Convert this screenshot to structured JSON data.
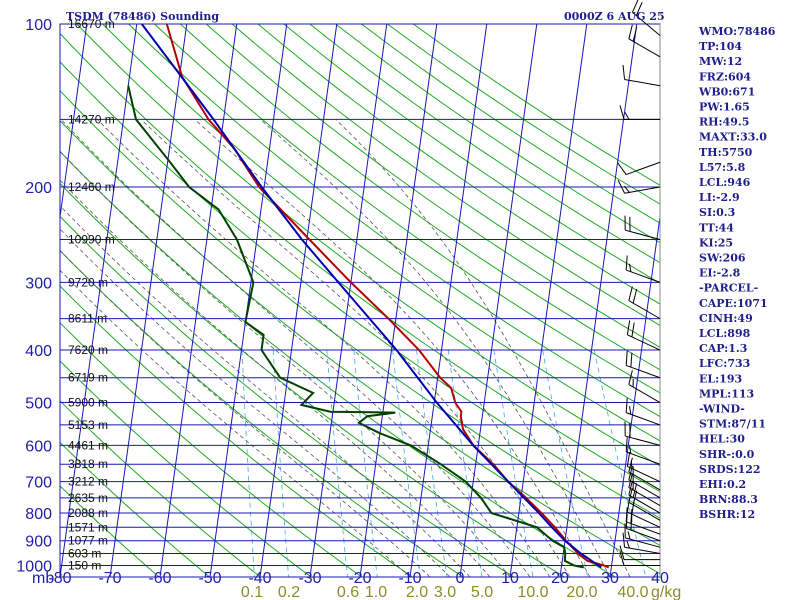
{
  "header": {
    "title": "TSDM (78486) Sounding",
    "datetime": "0000Z  6 AUG 25"
  },
  "chart_data": {
    "type": "line",
    "title": "TSDM (78486) Sounding",
    "y_unit": "mb",
    "temperature_ticks": [
      -80,
      -70,
      -60,
      -50,
      -40,
      -30,
      -20,
      -10,
      0,
      10,
      20,
      30,
      40
    ],
    "temperature_tick_labels": [
      "-80",
      "-70",
      "-60",
      "-50",
      "-40",
      "-30",
      "-20",
      "-10",
      "0",
      "10",
      "20",
      "30",
      "40"
    ],
    "mixing_ratio_labels": [
      "0.1",
      "0.2",
      "0.6",
      "1.0",
      "2.0",
      "3.0",
      "5.0",
      "10.0",
      "20.0",
      "40.0"
    ],
    "mixing_ratio_unit": "g/kg",
    "pressure_ticks": [
      100,
      200,
      300,
      400,
      500,
      600,
      700,
      800,
      900,
      1000
    ],
    "pressure_range": [
      100,
      1050
    ],
    "temperature_range": [
      -80,
      40
    ],
    "altitude_labels": [
      {
        "p": 100,
        "text": "16670 m"
      },
      {
        "p": 150,
        "text": "14270 m"
      },
      {
        "p": 200,
        "text": "12460 m"
      },
      {
        "p": 250,
        "text": "10990 m"
      },
      {
        "p": 300,
        "text": "9720 m"
      },
      {
        "p": 350,
        "text": "8611 m"
      },
      {
        "p": 400,
        "text": "7620 m"
      },
      {
        "p": 450,
        "text": "6719 m"
      },
      {
        "p": 500,
        "text": "5900 m"
      },
      {
        "p": 550,
        "text": "5153 m"
      },
      {
        "p": 600,
        "text": "4461 m"
      },
      {
        "p": 650,
        "text": "3818 m"
      },
      {
        "p": 700,
        "text": "3212 m"
      },
      {
        "p": 750,
        "text": "2635 m"
      },
      {
        "p": 800,
        "text": "2088 m"
      },
      {
        "p": 850,
        "text": "1571 m"
      },
      {
        "p": 900,
        "text": "1077 m"
      },
      {
        "p": 950,
        "text": "603 m"
      },
      {
        "p": 1000,
        "text": "150 m"
      }
    ],
    "series": [
      {
        "name": "temperature",
        "color": "#b40000",
        "points": [
          {
            "p": 1008,
            "t": 29.5
          },
          {
            "p": 1000,
            "t": 28.5
          },
          {
            "p": 980,
            "t": 25.0
          },
          {
            "p": 950,
            "t": 23.0
          },
          {
            "p": 925,
            "t": 21.6
          },
          {
            "p": 900,
            "t": 20.2
          },
          {
            "p": 850,
            "t": 17.6
          },
          {
            "p": 800,
            "t": 14.5
          },
          {
            "p": 750,
            "t": 11.0
          },
          {
            "p": 700,
            "t": 7.0
          },
          {
            "p": 650,
            "t": 3.5
          },
          {
            "p": 600,
            "t": -1.0
          },
          {
            "p": 560,
            "t": -3.5
          },
          {
            "p": 530,
            "t": -4.3
          },
          {
            "p": 520,
            "t": -4.3
          },
          {
            "p": 500,
            "t": -5.8
          },
          {
            "p": 470,
            "t": -7.0
          },
          {
            "p": 450,
            "t": -9.5
          },
          {
            "p": 400,
            "t": -14.5
          },
          {
            "p": 350,
            "t": -21.5
          },
          {
            "p": 300,
            "t": -30.0
          },
          {
            "p": 250,
            "t": -39.5
          },
          {
            "p": 200,
            "t": -51.0
          },
          {
            "p": 170,
            "t": -57.0
          },
          {
            "p": 150,
            "t": -63.0
          },
          {
            "p": 125,
            "t": -69.5
          },
          {
            "p": 100,
            "t": -74.0
          }
        ]
      },
      {
        "name": "dewpoint",
        "color": "#004000",
        "points": [
          {
            "p": 1008,
            "t": 24.5
          },
          {
            "p": 1000,
            "t": 22.5
          },
          {
            "p": 980,
            "t": 20.5
          },
          {
            "p": 950,
            "t": 20.4
          },
          {
            "p": 925,
            "t": 20.0
          },
          {
            "p": 900,
            "t": 17.5
          },
          {
            "p": 850,
            "t": 14.0
          },
          {
            "p": 800,
            "t": 4.5
          },
          {
            "p": 750,
            "t": 2.0
          },
          {
            "p": 700,
            "t": -1.5
          },
          {
            "p": 650,
            "t": -7.0
          },
          {
            "p": 600,
            "t": -13.5
          },
          {
            "p": 570,
            "t": -20.0
          },
          {
            "p": 545,
            "t": -24.5
          },
          {
            "p": 530,
            "t": -23.0
          },
          {
            "p": 522,
            "t": -17.5
          },
          {
            "p": 520,
            "t": -30.5
          },
          {
            "p": 505,
            "t": -36.5
          },
          {
            "p": 480,
            "t": -34.5
          },
          {
            "p": 450,
            "t": -41.5
          },
          {
            "p": 400,
            "t": -46.0
          },
          {
            "p": 375,
            "t": -46.0
          },
          {
            "p": 355,
            "t": -50.0
          },
          {
            "p": 300,
            "t": -49.5
          },
          {
            "p": 250,
            "t": -54.0
          },
          {
            "p": 220,
            "t": -58.5
          },
          {
            "p": 200,
            "t": -65.0
          },
          {
            "p": 180,
            "t": -69.5
          },
          {
            "p": 150,
            "t": -77.5
          },
          {
            "p": 130,
            "t": -80.0
          }
        ]
      },
      {
        "name": "parcel",
        "color": "#0000b0",
        "points": [
          {
            "p": 1008,
            "t": 28.0
          },
          {
            "p": 950,
            "t": 23.5
          },
          {
            "p": 900,
            "t": 20.0
          },
          {
            "p": 850,
            "t": 17.0
          },
          {
            "p": 800,
            "t": 14.0
          },
          {
            "p": 700,
            "t": 7.0
          },
          {
            "p": 600,
            "t": -1.0
          },
          {
            "p": 500,
            "t": -9.5
          },
          {
            "p": 400,
            "t": -19.0
          },
          {
            "p": 300,
            "t": -32.5
          },
          {
            "p": 250,
            "t": -41.0
          },
          {
            "p": 200,
            "t": -50.5
          },
          {
            "p": 150,
            "t": -62.0
          },
          {
            "p": 100,
            "t": -79.0
          }
        ]
      }
    ],
    "wind_barbs": [
      {
        "p": 1000,
        "dir": 270,
        "spd": 10
      },
      {
        "p": 975,
        "dir": 270,
        "spd": 10
      },
      {
        "p": 950,
        "dir": 280,
        "spd": 15
      },
      {
        "p": 925,
        "dir": 285,
        "spd": 15
      },
      {
        "p": 900,
        "dir": 290,
        "spd": 20
      },
      {
        "p": 875,
        "dir": 290,
        "spd": 20
      },
      {
        "p": 850,
        "dir": 295,
        "spd": 20
      },
      {
        "p": 825,
        "dir": 300,
        "spd": 20
      },
      {
        "p": 800,
        "dir": 300,
        "spd": 20
      },
      {
        "p": 775,
        "dir": 300,
        "spd": 15
      },
      {
        "p": 750,
        "dir": 300,
        "spd": 15
      },
      {
        "p": 725,
        "dir": 300,
        "spd": 15
      },
      {
        "p": 700,
        "dir": 295,
        "spd": 15
      },
      {
        "p": 650,
        "dir": 290,
        "spd": 15
      },
      {
        "p": 600,
        "dir": 285,
        "spd": 20
      },
      {
        "p": 550,
        "dir": 290,
        "spd": 15
      },
      {
        "p": 500,
        "dir": 300,
        "spd": 15
      },
      {
        "p": 450,
        "dir": 290,
        "spd": 20
      },
      {
        "p": 400,
        "dir": 295,
        "spd": 20
      },
      {
        "p": 350,
        "dir": 300,
        "spd": 20
      },
      {
        "p": 300,
        "dir": 290,
        "spd": 15
      },
      {
        "p": 250,
        "dir": 285,
        "spd": 20
      },
      {
        "p": 200,
        "dir": 260,
        "spd": 15
      },
      {
        "p": 180,
        "dir": 250,
        "spd": 10
      },
      {
        "p": 150,
        "dir": 270,
        "spd": 15
      },
      {
        "p": 130,
        "dir": 280,
        "spd": 10
      },
      {
        "p": 115,
        "dir": 300,
        "spd": 20
      },
      {
        "p": 105,
        "dir": 310,
        "spd": 20
      }
    ],
    "grid": true,
    "legend": "none"
  },
  "indices": [
    "WMO:78486",
    "TP:104",
    "MW:12",
    "FRZ:604",
    "WB0:671",
    "PW:1.65",
    "RH:49.5",
    "MAXT:33.0",
    "TH:5750",
    "L57:5.8",
    "LCL:946",
    "LI:-2.9",
    "SI:0.3",
    "TT:44",
    "KI:25",
    "SW:206",
    "EI:-2.8",
    "-PARCEL-",
    "CAPE:1071",
    "CINH:49",
    "LCL:898",
    "CAP:1.3",
    "LFC:733",
    "EL:193",
    "MPL:113",
    "-WIND-",
    "STM:87/11",
    "HEL:30",
    "SHR-:0.0",
    "SRDS:122",
    "EHI:0.2",
    "BRN:88.3",
    "BSHR:12"
  ],
  "colors": {
    "isobar": "#1818b0",
    "isotherm": "#1818b0",
    "dry_adiabat": "#22aa22",
    "moist_adiabat": "#555555",
    "mixing_ratio": "#44aadd",
    "tick_label_blue": "#1e1ea8",
    "mixing_label": "#8c8c2a",
    "index_text": "#1e1e8c"
  }
}
